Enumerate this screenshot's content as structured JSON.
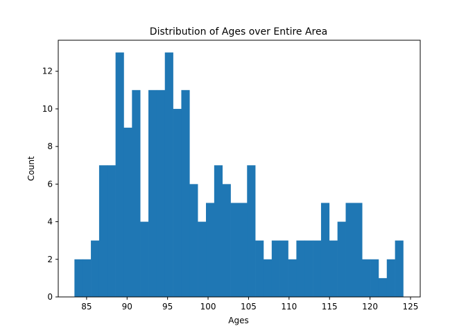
{
  "chart_data": {
    "type": "bar",
    "title": "Distribution of Ages over Entire Area",
    "xlabel": "Ages",
    "ylabel": "Count",
    "bar_color": "#1f77b4",
    "xlim": [
      81.5,
      126.2
    ],
    "ylim": [
      0,
      13.65
    ],
    "xticks": [
      85,
      90,
      95,
      100,
      105,
      110,
      115,
      120,
      125
    ],
    "yticks": [
      0,
      2,
      4,
      6,
      8,
      10,
      12
    ],
    "bins": {
      "start": 83.5,
      "width": 1.015,
      "counts": [
        2,
        2,
        3,
        7,
        7,
        13,
        9,
        11,
        4,
        11,
        11,
        13,
        10,
        11,
        6,
        4,
        5,
        7,
        6,
        5,
        5,
        7,
        3,
        2,
        3,
        3,
        2,
        3,
        3,
        3,
        5,
        3,
        4,
        5,
        5,
        2,
        2,
        1,
        2,
        3
      ]
    }
  }
}
